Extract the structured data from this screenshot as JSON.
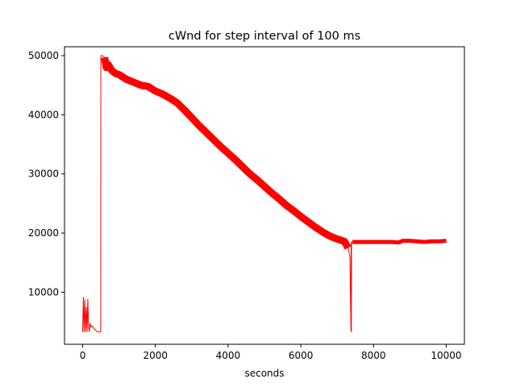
{
  "chart_data": {
    "type": "line",
    "title": "cWnd for step interval of 100 ms",
    "xlabel": "seconds",
    "ylabel": "",
    "xlim": [
      -500,
      10500
    ],
    "ylim": [
      1200,
      51500
    ],
    "xticks": [
      0,
      2000,
      4000,
      6000,
      8000,
      10000
    ],
    "xtick_labels": [
      "0",
      "2000",
      "4000",
      "6000",
      "8000",
      "10000"
    ],
    "yticks": [
      10000,
      20000,
      30000,
      40000,
      50000
    ],
    "ytick_labels": [
      "10000",
      "20000",
      "30000",
      "40000",
      "50000"
    ],
    "grid": false,
    "legend": "none",
    "series": [
      {
        "name": "",
        "color": "#ff0000",
        "x": [
          0,
          20,
          40,
          60,
          80,
          100,
          120,
          140,
          160,
          180,
          200,
          230,
          260,
          300,
          350,
          400,
          450,
          490,
          495,
          500,
          520,
          550,
          600,
          650,
          700,
          800,
          900,
          1000,
          1200,
          1400,
          1600,
          1800,
          2000,
          2200,
          2400,
          2600,
          2800,
          3000,
          3200,
          3400,
          3600,
          3800,
          4000,
          4200,
          4400,
          4600,
          4800,
          5000,
          5200,
          5400,
          5600,
          5800,
          6000,
          6200,
          6400,
          6600,
          6800,
          7000,
          7200,
          7300,
          7350,
          7380,
          7385,
          7390,
          7395,
          7400,
          7410,
          7420,
          7500,
          7700,
          7900,
          8100,
          8300,
          8500,
          8700,
          8800,
          9000,
          9200,
          9400,
          9600,
          9800,
          10000
        ],
        "y": [
          3300,
          9200,
          3300,
          8800,
          3300,
          7500,
          3300,
          8900,
          4300,
          3300,
          4800,
          4100,
          4300,
          3900,
          3600,
          3300,
          3300,
          3300,
          3300,
          50000,
          50000,
          50000,
          49700,
          48000,
          48500,
          47500,
          47000,
          46800,
          46000,
          45500,
          45000,
          44800,
          44000,
          43500,
          42800,
          42000,
          40800,
          39500,
          38200,
          37000,
          35800,
          34600,
          33500,
          32400,
          31200,
          30000,
          29000,
          27900,
          26800,
          25800,
          24700,
          23800,
          22800,
          21900,
          21000,
          20200,
          19500,
          19000,
          18600,
          17500,
          16000,
          3400,
          18500,
          3300,
          18500,
          18500,
          18500,
          18500,
          18500,
          18500,
          18500,
          18500,
          18500,
          18500,
          18400,
          18700,
          18700,
          18600,
          18500,
          18600,
          18600,
          18700
        ]
      }
    ]
  }
}
